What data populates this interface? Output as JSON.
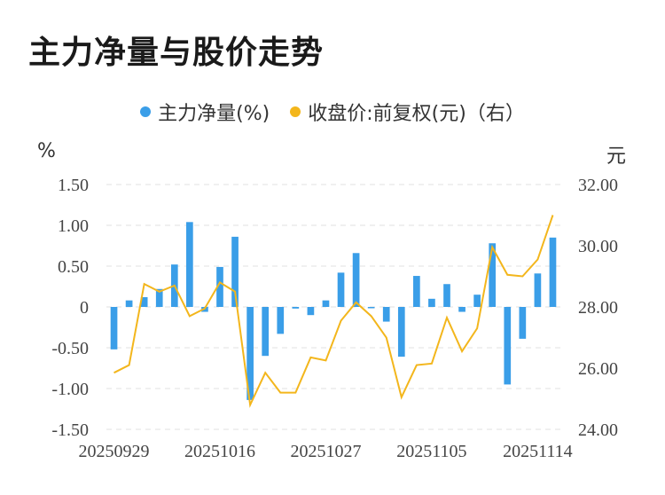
{
  "title": "主力净量与股价走势",
  "colors": {
    "bar": "#3a9ee8",
    "line": "#f3b61c",
    "grid": "#e6e6e6"
  },
  "chart_data": {
    "type": "bar+line",
    "title": "主力净量与股价走势",
    "legend": [
      "主力净量(%)",
      "收盘价:前复权(元)（右）"
    ],
    "left_unit": "%",
    "right_unit": "元",
    "left_ticks": [
      "1.50",
      "1.00",
      "0.50",
      "0",
      "-0.50",
      "-1.00",
      "-1.50"
    ],
    "right_ticks": [
      "32.00",
      "30.00",
      "28.00",
      "26.00",
      "24.00"
    ],
    "x_tick_labels": [
      {
        "index": 0,
        "label": "20250929"
      },
      {
        "index": 7,
        "label": "20251016"
      },
      {
        "index": 14,
        "label": "20251027"
      },
      {
        "index": 21,
        "label": "20251105"
      },
      {
        "index": 28,
        "label": "20251114"
      }
    ],
    "ylim_left": [
      -1.5,
      1.5
    ],
    "ylim_right": [
      24,
      32
    ],
    "grid": true,
    "series": [
      {
        "name": "主力净量(%)",
        "type": "bar",
        "values": [
          -0.52,
          0.08,
          0.12,
          0.22,
          0.52,
          1.04,
          -0.06,
          0.49,
          0.86,
          -1.14,
          -0.6,
          -0.33,
          -0.02,
          -0.1,
          0.08,
          0.42,
          0.66,
          -0.01,
          -0.18,
          -0.61,
          0.38,
          0.1,
          0.28,
          -0.06,
          0.15,
          0.78,
          -0.95,
          -0.39,
          0.41,
          0.85
        ]
      },
      {
        "name": "收盘价:前复权(元)（右）",
        "type": "line",
        "values": [
          25.85,
          26.1,
          28.75,
          28.5,
          28.7,
          27.7,
          27.95,
          28.8,
          28.5,
          24.8,
          25.85,
          25.2,
          25.2,
          26.35,
          26.25,
          27.55,
          28.15,
          27.7,
          27.0,
          25.05,
          26.1,
          26.15,
          27.65,
          26.55,
          27.3,
          29.95,
          29.05,
          29.0,
          29.55,
          31.0
        ]
      }
    ]
  }
}
